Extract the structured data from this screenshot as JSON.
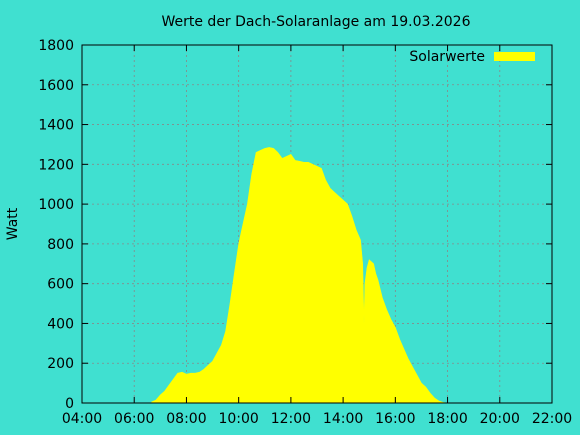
{
  "chart_data": {
    "type": "area",
    "title": "Werte der Dach-Solaranlage am 19.03.2026",
    "ylabel": "Watt",
    "xlabel": "",
    "xlim": [
      "04:00",
      "22:00"
    ],
    "ylim": [
      0,
      1800
    ],
    "x_ticks": [
      "04:00",
      "06:00",
      "08:00",
      "10:00",
      "12:00",
      "14:00",
      "16:00",
      "18:00",
      "20:00",
      "22:00"
    ],
    "y_ticks": [
      0,
      200,
      400,
      600,
      800,
      1000,
      1200,
      1400,
      1600,
      1800
    ],
    "grid": true,
    "legend": "top-right",
    "colors": {
      "background": "#40E0D0",
      "series": "#FFFF00"
    },
    "series": [
      {
        "name": "Solarwerte",
        "x": [
          "06:40",
          "06:50",
          "07:00",
          "07:10",
          "07:20",
          "07:30",
          "07:40",
          "07:50",
          "08:00",
          "08:10",
          "08:20",
          "08:30",
          "08:40",
          "08:50",
          "09:00",
          "09:10",
          "09:20",
          "09:30",
          "09:40",
          "09:50",
          "10:00",
          "10:05",
          "10:10",
          "10:20",
          "10:30",
          "10:40",
          "10:50",
          "11:00",
          "11:10",
          "11:20",
          "11:30",
          "11:40",
          "11:50",
          "12:00",
          "12:10",
          "12:20",
          "12:30",
          "12:40",
          "12:50",
          "13:00",
          "13:10",
          "13:20",
          "13:30",
          "13:40",
          "13:50",
          "14:00",
          "14:10",
          "14:20",
          "14:30",
          "14:40",
          "14:45",
          "14:48",
          "14:50",
          "14:55",
          "15:00",
          "15:10",
          "15:15",
          "15:20",
          "15:30",
          "15:40",
          "15:50",
          "16:00",
          "16:10",
          "16:20",
          "16:30",
          "16:40",
          "16:50",
          "17:00",
          "17:10",
          "17:20",
          "17:30",
          "17:40",
          "17:50",
          "18:00"
        ],
        "values": [
          5,
          15,
          40,
          60,
          90,
          120,
          150,
          155,
          145,
          150,
          150,
          155,
          170,
          190,
          210,
          250,
          290,
          360,
          500,
          650,
          800,
          850,
          900,
          1000,
          1150,
          1260,
          1270,
          1280,
          1285,
          1280,
          1260,
          1230,
          1240,
          1250,
          1220,
          1215,
          1210,
          1210,
          1200,
          1190,
          1180,
          1120,
          1080,
          1060,
          1040,
          1020,
          1000,
          940,
          870,
          820,
          700,
          400,
          600,
          680,
          720,
          700,
          650,
          620,
          530,
          470,
          420,
          380,
          320,
          270,
          220,
          180,
          140,
          100,
          80,
          50,
          25,
          10,
          3,
          0
        ]
      }
    ]
  }
}
